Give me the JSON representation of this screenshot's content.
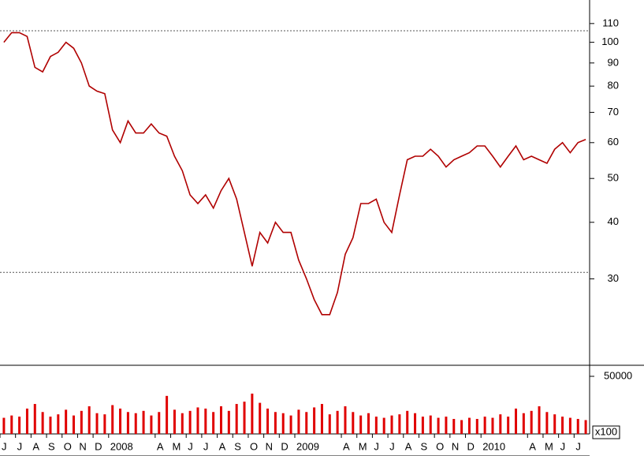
{
  "chart_data": {
    "type": "stock",
    "categories": [
      "J",
      null,
      "J",
      null,
      "A",
      null,
      "S",
      null,
      "O",
      null,
      "N",
      null,
      "D",
      null,
      "2008",
      null,
      null,
      null,
      null,
      null,
      "A",
      null,
      "M",
      null,
      "J",
      null,
      "J",
      null,
      "A",
      null,
      "S",
      null,
      "O",
      null,
      "N",
      null,
      "D",
      null,
      "2009",
      null,
      null,
      null,
      null,
      null,
      "A",
      null,
      "M",
      null,
      "J",
      null,
      "J",
      null,
      "A",
      null,
      "S",
      null,
      "O",
      null,
      "N",
      null,
      "D",
      null,
      "2010",
      null,
      null,
      null,
      null,
      null,
      "A",
      null,
      "M",
      null,
      "J",
      null,
      "J",
      null
    ],
    "series": [
      {
        "name": "Price",
        "color": "#b00000",
        "log_scale": true,
        "values": [
          100,
          105,
          105,
          103,
          88,
          86,
          93,
          95,
          100,
          97,
          90,
          80,
          78,
          77,
          64,
          60,
          67,
          63,
          63,
          66,
          63,
          62,
          56,
          52,
          46,
          44,
          46,
          43,
          47,
          50,
          45,
          38,
          32,
          38,
          36,
          40,
          38,
          38,
          33,
          30,
          27,
          25,
          25,
          28,
          34,
          37,
          44,
          44,
          45,
          40,
          38,
          46,
          55,
          56,
          56,
          58,
          56,
          53,
          55,
          56,
          57,
          59,
          59,
          56,
          53,
          56,
          59,
          55,
          56,
          55,
          54,
          58,
          60,
          57,
          60,
          61
        ]
      },
      {
        "name": "Volume",
        "color": "#e00000",
        "axis": "y2",
        "values": [
          14000,
          16000,
          15000,
          22000,
          26000,
          19000,
          15000,
          17000,
          21000,
          16000,
          20000,
          24000,
          18000,
          17000,
          25000,
          22000,
          19000,
          18000,
          20000,
          16000,
          19000,
          33000,
          21000,
          18000,
          20000,
          23000,
          22000,
          19000,
          24000,
          20000,
          26000,
          28000,
          35000,
          27000,
          22000,
          19000,
          18000,
          16000,
          21000,
          19000,
          23000,
          26000,
          17000,
          20000,
          24000,
          19000,
          16000,
          18000,
          15000,
          14000,
          16000,
          17000,
          20000,
          18000,
          15000,
          16000,
          14000,
          15000,
          13000,
          12000,
          14000,
          13000,
          15000,
          14000,
          17000,
          15000,
          22000,
          18000,
          20000,
          24000,
          19000,
          17000,
          15000,
          14000,
          13000,
          12000
        ]
      }
    ],
    "ylim": [
      19.4,
      124
    ],
    "yticks": [
      30,
      40,
      50,
      60,
      70,
      80,
      90,
      100,
      110
    ],
    "y2lim": [
      0,
      59600
    ],
    "y2ticks": [
      50000
    ],
    "y2_unit_label": "x100",
    "hlines": [
      106,
      31
    ]
  }
}
